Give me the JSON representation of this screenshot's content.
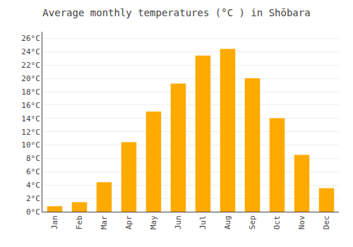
{
  "chart_data": {
    "type": "bar",
    "title": "Average monthly temperatures (°C ) in Shōbara",
    "categories": [
      "Jan",
      "Feb",
      "Mar",
      "Apr",
      "May",
      "Jun",
      "Jul",
      "Aug",
      "Sep",
      "Oct",
      "Nov",
      "Dec"
    ],
    "values": [
      0.8,
      1.4,
      4.4,
      10.4,
      15.0,
      19.2,
      23.4,
      24.4,
      20.0,
      14.0,
      8.5,
      3.5
    ],
    "color": "#FFAA00",
    "ylim": [
      0,
      27
    ],
    "yticks": [
      {
        "value": 0,
        "label": "0°C"
      },
      {
        "value": 2,
        "label": "2°C"
      },
      {
        "value": 4,
        "label": "4°C"
      },
      {
        "value": 6,
        "label": "6°C"
      },
      {
        "value": 8,
        "label": "8°C"
      },
      {
        "value": 10,
        "label": "10°C"
      },
      {
        "value": 12,
        "label": "12°C"
      },
      {
        "value": 14,
        "label": "14°C"
      },
      {
        "value": 16,
        "label": "16°C"
      },
      {
        "value": 18,
        "label": "18°C"
      },
      {
        "value": 20,
        "label": "20°C"
      },
      {
        "value": 22,
        "label": "22°C"
      },
      {
        "value": 24,
        "label": "24°C"
      },
      {
        "value": 26,
        "label": "26°C"
      }
    ],
    "grid": true
  }
}
